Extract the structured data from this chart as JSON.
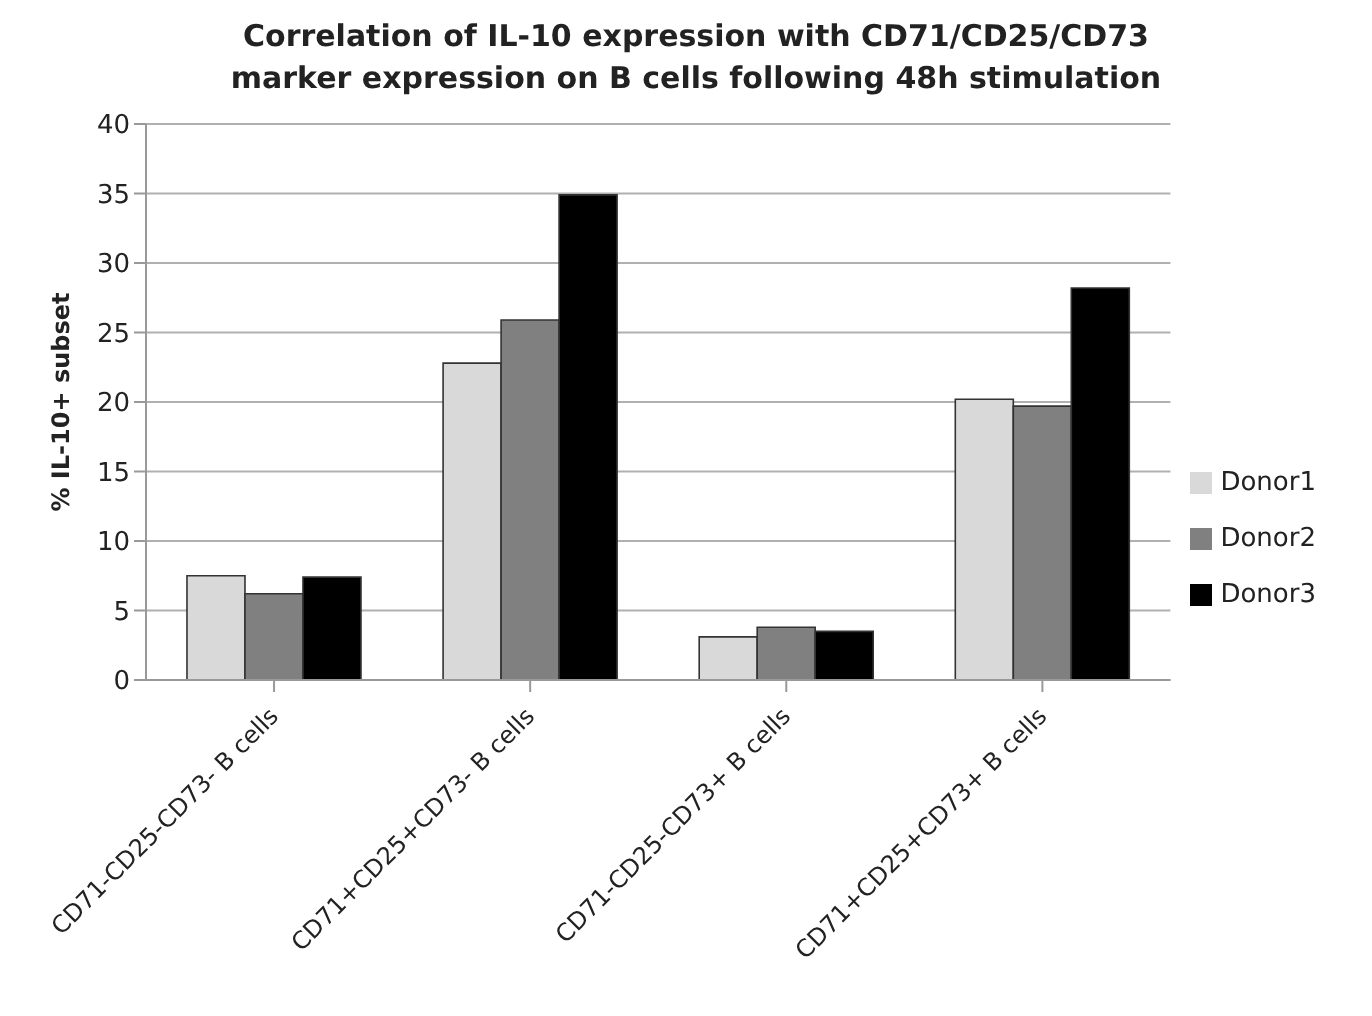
{
  "chart_data": {
    "type": "bar",
    "title": "Correlation of IL-10 expression with CD71/CD25/CD73 marker expression on B cells following 48h stimulation",
    "ylabel": "% IL-10+ subset",
    "categories": [
      "CD71-CD25-CD73- B cells",
      "CD71+CD25+CD73- B cells",
      "CD71-CD25-CD73+ B cells",
      "CD71+CD25+CD73+ B cells"
    ],
    "series": [
      {
        "name": "Donor1",
        "color": "#d9d9d9",
        "values": [
          7.5,
          22.8,
          3.1,
          20.2
        ]
      },
      {
        "name": "Donor2",
        "color": "#808080",
        "values": [
          6.2,
          25.9,
          3.8,
          19.7
        ]
      },
      {
        "name": "Donor3",
        "color": "#000000",
        "values": [
          7.4,
          34.9,
          3.5,
          28.2
        ]
      }
    ],
    "ylim": [
      0,
      40
    ],
    "yticks": [
      0,
      5,
      10,
      15,
      20,
      25,
      30,
      35,
      40
    ],
    "grid": "y",
    "legend": "right"
  }
}
